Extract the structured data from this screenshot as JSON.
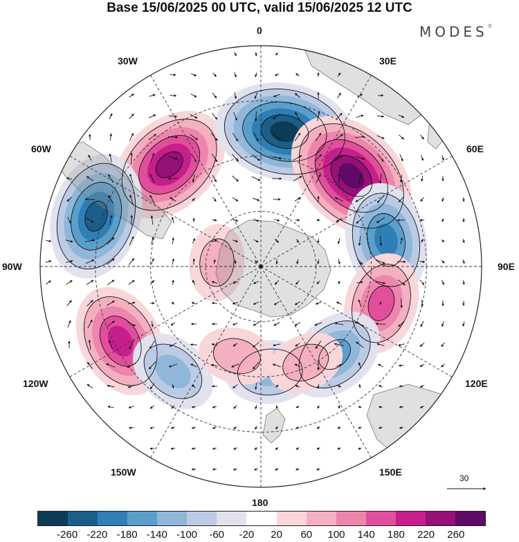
{
  "title": "Base 15/06/2025 00 UTC, valid 15/06/2025 12 UTC",
  "brand": "MODES",
  "brand_mark": "©",
  "longitude_labels": [
    {
      "id": "lon-0",
      "text": "0"
    },
    {
      "id": "lon-30e",
      "text": "30E"
    },
    {
      "id": "lon-60e",
      "text": "60E"
    },
    {
      "id": "lon-90e",
      "text": "90E"
    },
    {
      "id": "lon-120e",
      "text": "120E"
    },
    {
      "id": "lon-150e",
      "text": "150E"
    },
    {
      "id": "lon-180",
      "text": "180"
    },
    {
      "id": "lon-150w",
      "text": "150W"
    },
    {
      "id": "lon-120w",
      "text": "120W"
    },
    {
      "id": "lon-90w",
      "text": "90W"
    },
    {
      "id": "lon-60w",
      "text": "60W"
    },
    {
      "id": "lon-30w",
      "text": "30W"
    }
  ],
  "vector_scale_label": "30",
  "colorbar": {
    "colors": [
      "#0d3b58",
      "#1b5e8a",
      "#2f7fb5",
      "#5a9fcb",
      "#8fb7da",
      "#bccbe5",
      "#e2e2ef",
      "#ffffff",
      "#f9d6d9",
      "#f4b0c0",
      "#ee85ad",
      "#e14f9c",
      "#c61f8c",
      "#951077",
      "#5e0a66"
    ],
    "labels": [
      "-260",
      "-220",
      "-180",
      "-140",
      "-100",
      "-60",
      "-20",
      "20",
      "60",
      "100",
      "140",
      "180",
      "220",
      "260"
    ]
  },
  "anomaly_centers": [
    {
      "polar_angle_deg": -42,
      "radius_fraction": 0.62,
      "value": 200
    },
    {
      "polar_angle_deg": 10,
      "radius_fraction": 0.62,
      "value": -260
    },
    {
      "polar_angle_deg": 45,
      "radius_fraction": 0.58,
      "value": 240
    },
    {
      "polar_angle_deg": -73,
      "radius_fraction": 0.78,
      "value": -200
    },
    {
      "polar_angle_deg": 78,
      "radius_fraction": 0.58,
      "value": -160
    },
    {
      "polar_angle_deg": -118,
      "radius_fraction": 0.72,
      "value": 180
    },
    {
      "polar_angle_deg": 107,
      "radius_fraction": 0.57,
      "value": 150
    },
    {
      "polar_angle_deg": 140,
      "radius_fraction": 0.52,
      "value": -140
    },
    {
      "polar_angle_deg": -140,
      "radius_fraction": 0.62,
      "value": -80
    },
    {
      "polar_angle_deg": 175,
      "radius_fraction": 0.48,
      "value": -100
    },
    {
      "polar_angle_deg": 155,
      "radius_fraction": 0.48,
      "value": 70
    },
    {
      "polar_angle_deg": -165,
      "radius_fraction": 0.42,
      "value": 50
    },
    {
      "polar_angle_deg": -85,
      "radius_fraction": 0.2,
      "value": 50
    }
  ]
}
